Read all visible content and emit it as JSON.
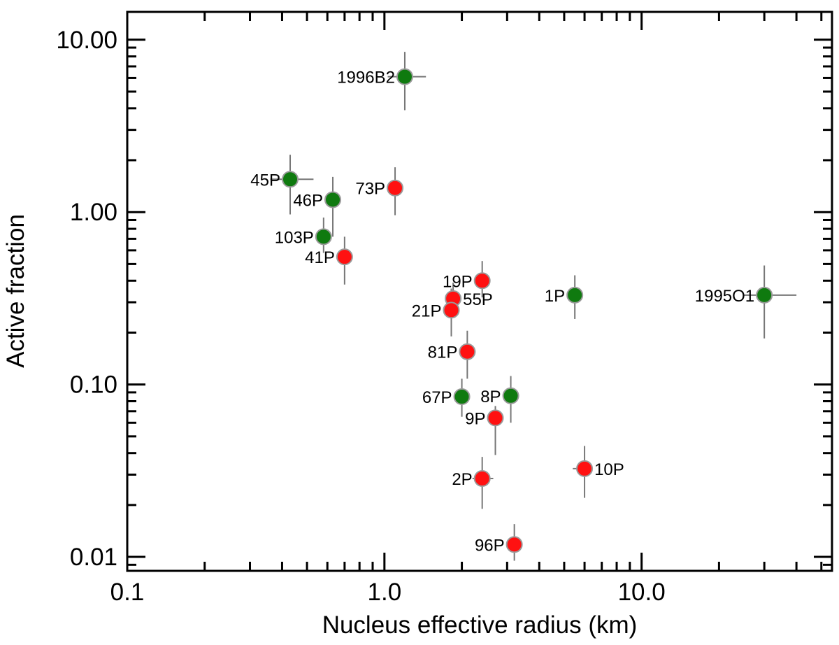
{
  "chart_data": {
    "type": "scatter",
    "title": "",
    "xlabel": "Nucleus effective radius (km)",
    "ylabel": "Active fraction",
    "xscale": "log",
    "yscale": "log",
    "xlim": [
      0.1,
      55
    ],
    "ylim": [
      0.0083,
      14.5
    ],
    "x_ticks": [
      0.1,
      1.0,
      10.0
    ],
    "x_tick_labels": [
      "0.1",
      "1.0",
      "10.0"
    ],
    "y_ticks": [
      0.01,
      0.1,
      1.0,
      10.0
    ],
    "y_tick_labels": [
      "0.01",
      "0.10",
      "1.00",
      "10.00"
    ],
    "colors": {
      "green": "#0f7a0f",
      "red": "#ff1111",
      "errorbar": "#777777",
      "marker_edge": "#9a9a9a"
    },
    "points": [
      {
        "label": "1996B2",
        "x": 1.2,
        "y": 6.1,
        "x_err": [
          1.03,
          1.45
        ],
        "y_err": [
          3.9,
          8.5
        ],
        "group": "green",
        "label_side": "left"
      },
      {
        "label": "45P",
        "x": 0.43,
        "y": 1.55,
        "x_err": [
          0.36,
          0.53
        ],
        "y_err": [
          0.97,
          2.15
        ],
        "group": "green",
        "label_side": "left"
      },
      {
        "label": "46P",
        "x": 0.63,
        "y": 1.18,
        "x_err": [
          0.6,
          0.66
        ],
        "y_err": [
          0.72,
          1.6
        ],
        "group": "green",
        "label_side": "left"
      },
      {
        "label": "73P",
        "x": 1.1,
        "y": 1.38,
        "x_err": [
          1.08,
          1.12
        ],
        "y_err": [
          0.96,
          1.82
        ],
        "group": "red",
        "label_side": "left"
      },
      {
        "label": "103P",
        "x": 0.58,
        "y": 0.72,
        "x_err": [
          0.56,
          0.6
        ],
        "y_err": [
          0.58,
          0.93
        ],
        "group": "green",
        "label_side": "left"
      },
      {
        "label": "41P",
        "x": 0.7,
        "y": 0.55,
        "x_err": [
          0.68,
          0.72
        ],
        "y_err": [
          0.38,
          0.72
        ],
        "group": "red",
        "label_side": "left"
      },
      {
        "label": "19P",
        "x": 2.4,
        "y": 0.4,
        "x_err": [
          2.36,
          2.44
        ],
        "y_err": [
          0.32,
          0.52
        ],
        "group": "red",
        "label_side": "left"
      },
      {
        "label": "55P",
        "x": 1.85,
        "y": 0.315,
        "x_err": [
          1.83,
          1.87
        ],
        "y_err": [
          0.25,
          0.39
        ],
        "group": "red",
        "label_side": "right"
      },
      {
        "label": "21P",
        "x": 1.82,
        "y": 0.27,
        "x_err": [
          1.8,
          1.84
        ],
        "y_err": [
          0.19,
          0.36
        ],
        "group": "red",
        "label_side": "left"
      },
      {
        "label": "1P",
        "x": 5.5,
        "y": 0.33,
        "x_err": [
          5.45,
          5.55
        ],
        "y_err": [
          0.24,
          0.43
        ],
        "group": "green",
        "label_side": "left"
      },
      {
        "label": "1995O1",
        "x": 30.0,
        "y": 0.33,
        "x_err": [
          25.0,
          40.0
        ],
        "y_err": [
          0.185,
          0.49
        ],
        "group": "green",
        "label_side": "left"
      },
      {
        "label": "81P",
        "x": 2.1,
        "y": 0.155,
        "x_err": [
          2.07,
          2.13
        ],
        "y_err": [
          0.108,
          0.205
        ],
        "group": "red",
        "label_side": "left"
      },
      {
        "label": "67P",
        "x": 2.0,
        "y": 0.085,
        "x_err": [
          1.97,
          2.03
        ],
        "y_err": [
          0.065,
          0.108
        ],
        "group": "green",
        "label_side": "left"
      },
      {
        "label": "8P",
        "x": 3.1,
        "y": 0.086,
        "x_err": [
          3.05,
          3.15
        ],
        "y_err": [
          0.06,
          0.112
        ],
        "group": "green",
        "label_side": "left"
      },
      {
        "label": "9P",
        "x": 2.7,
        "y": 0.064,
        "x_err": [
          2.66,
          2.74
        ],
        "y_err": [
          0.039,
          0.075
        ],
        "group": "red",
        "label_side": "left"
      },
      {
        "label": "10P",
        "x": 6.0,
        "y": 0.0325,
        "x_err": [
          5.4,
          6.2
        ],
        "y_err": [
          0.022,
          0.044
        ],
        "group": "red",
        "label_side": "right"
      },
      {
        "label": "2P",
        "x": 2.4,
        "y": 0.0285,
        "x_err": [
          2.2,
          2.65
        ],
        "y_err": [
          0.019,
          0.038
        ],
        "group": "red",
        "label_side": "left"
      },
      {
        "label": "96P",
        "x": 3.2,
        "y": 0.0118,
        "x_err": [
          3.16,
          3.24
        ],
        "y_err": [
          0.0095,
          0.0155
        ],
        "group": "red",
        "label_side": "left"
      }
    ]
  }
}
